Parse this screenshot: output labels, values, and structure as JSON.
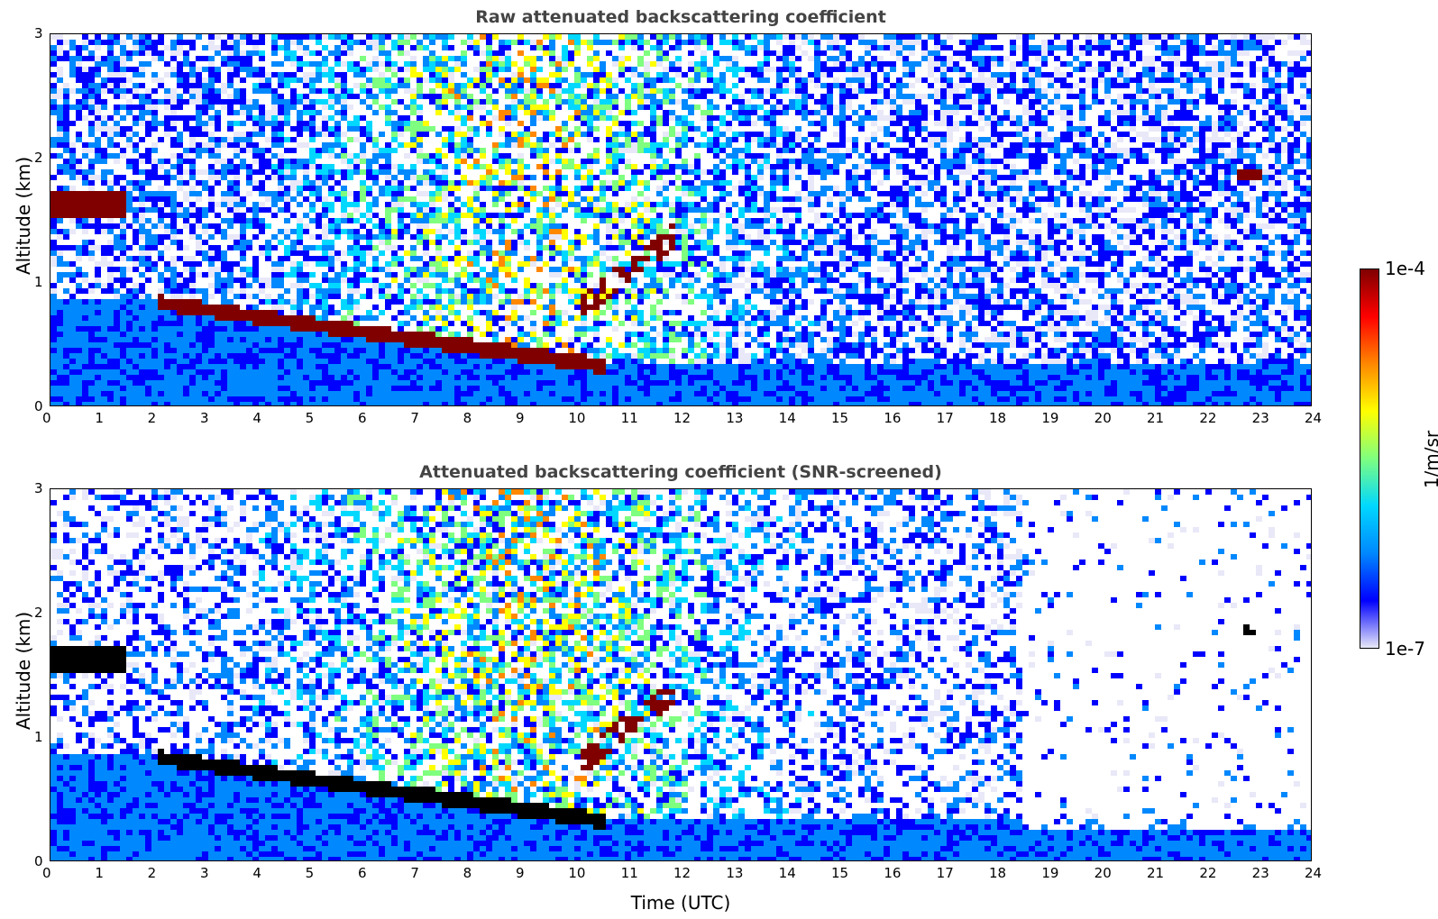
{
  "chart_data": [
    {
      "type": "heatmap",
      "title": "Raw attenuated backscattering coefficient",
      "xlabel": "",
      "ylabel": "Altitude (km)",
      "xlim": [
        0,
        24
      ],
      "ylim": [
        0,
        3
      ],
      "xticks": [
        "0",
        "1",
        "2",
        "3",
        "4",
        "5",
        "6",
        "7",
        "8",
        "9",
        "10",
        "11",
        "12",
        "13",
        "14",
        "15",
        "16",
        "17",
        "18",
        "19",
        "20",
        "21",
        "22",
        "23",
        "24"
      ],
      "yticks": [
        "0",
        "1",
        "2",
        "3"
      ],
      "features": [
        {
          "name": "upper cloud layer",
          "x": [
            0,
            1.4
          ],
          "y": [
            1.55,
            1.75
          ]
        },
        {
          "name": "boundary-layer top",
          "x": [
            2.0,
            10.5
          ],
          "y_start": 0.85,
          "y_end": 0.35
        },
        {
          "name": "rising cloud",
          "x": [
            10.0,
            11.8
          ],
          "y": [
            0.8,
            1.4
          ]
        },
        {
          "name": "isolated cloud",
          "x": [
            22.5,
            23.0
          ],
          "y": [
            1.85,
            1.95
          ]
        }
      ]
    },
    {
      "type": "heatmap",
      "title": "Attenuated backscattering coefficient (SNR-screened)",
      "xlabel": "Time (UTC)",
      "ylabel": "Altitude (km)",
      "xlim": [
        0,
        24
      ],
      "ylim": [
        0,
        3
      ],
      "xticks": [
        "0",
        "1",
        "2",
        "3",
        "4",
        "5",
        "6",
        "7",
        "8",
        "9",
        "10",
        "11",
        "12",
        "13",
        "14",
        "15",
        "16",
        "17",
        "18",
        "19",
        "20",
        "21",
        "22",
        "23",
        "24"
      ],
      "yticks": [
        "0",
        "1",
        "2",
        "3"
      ]
    }
  ],
  "colorbar": {
    "label": "1/m/sr",
    "max_label": "1e-4",
    "min_label": "1e-7",
    "colormap": [
      "#e8e8f8",
      "#0000ff",
      "#0088ff",
      "#00d8ff",
      "#7fff7f",
      "#ffff00",
      "#ff8800",
      "#ff0000",
      "#800000"
    ]
  }
}
